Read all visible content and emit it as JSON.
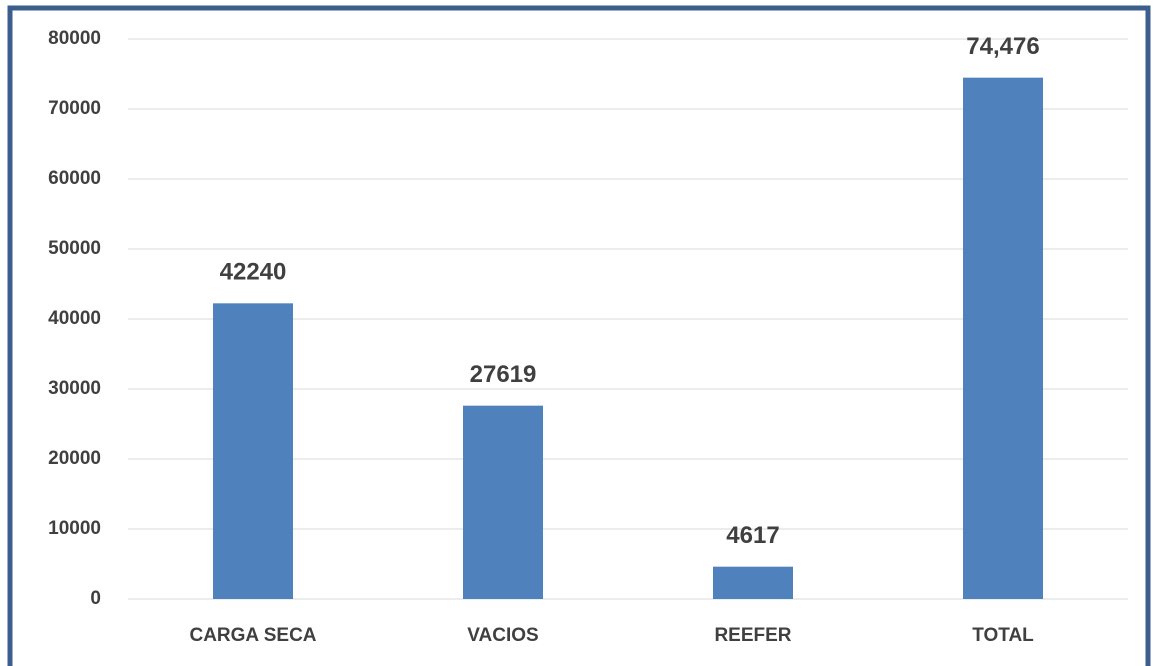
{
  "chart_data": {
    "type": "bar",
    "categories": [
      "CARGA SECA",
      "VACIOS",
      "REEFER",
      "TOTAL"
    ],
    "values": [
      42240,
      27619,
      4617,
      74476
    ],
    "value_labels": [
      "42240",
      "27619",
      "4617",
      "74,476"
    ],
    "color": "#4f81bd",
    "ylim": [
      0,
      80000
    ],
    "yticks": [
      0,
      10000,
      20000,
      30000,
      40000,
      50000,
      60000,
      70000,
      80000
    ],
    "grid": true
  }
}
